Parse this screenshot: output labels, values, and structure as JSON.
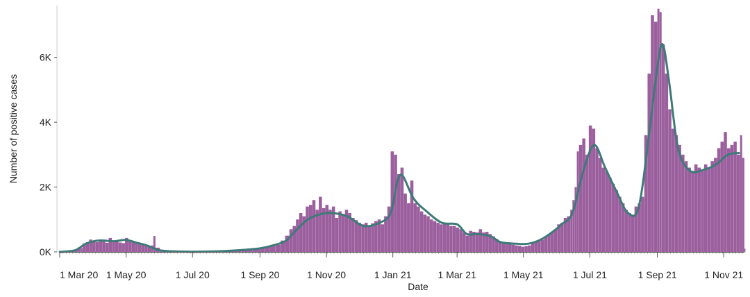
{
  "chart_data": {
    "type": "bar",
    "title": "",
    "xlabel": "Date",
    "ylabel": "Number of positive cases",
    "x_ticks": [
      {
        "date": "2020-03-01",
        "label": "1 Mar 20"
      },
      {
        "date": "2020-05-01",
        "label": "1 May 20"
      },
      {
        "date": "2020-07-01",
        "label": "1 Jul 20"
      },
      {
        "date": "2020-09-01",
        "label": "1 Sep 20"
      },
      {
        "date": "2020-11-01",
        "label": "1 Nov 20"
      },
      {
        "date": "2021-01-01",
        "label": "1 Jan 21"
      },
      {
        "date": "2021-03-01",
        "label": "1 Mar 21"
      },
      {
        "date": "2021-05-01",
        "label": "1 May 21"
      },
      {
        "date": "2021-07-01",
        "label": "1 Jul 21"
      },
      {
        "date": "2021-09-01",
        "label": "1 Sep 21"
      },
      {
        "date": "2021-11-01",
        "label": "1 Nov 21"
      }
    ],
    "y_ticks": [
      {
        "value": 0,
        "label": "0K"
      },
      {
        "value": 2000,
        "label": "2K"
      },
      {
        "value": 4000,
        "label": "4K"
      },
      {
        "value": 6000,
        "label": "6K"
      }
    ],
    "xlim": [
      "2020-03-01",
      "2021-11-20"
    ],
    "ylim": [
      0,
      7600
    ],
    "grid": false,
    "colors": {
      "bars": "#9b5f9e",
      "trend": "#3d7a78"
    },
    "series": [
      {
        "type": "bar",
        "values": [
          [
            "2020-03-01",
            5
          ],
          [
            "2020-03-05",
            12
          ],
          [
            "2020-03-10",
            30
          ],
          [
            "2020-03-15",
            60
          ],
          [
            "2020-03-18",
            150
          ],
          [
            "2020-03-20",
            120
          ],
          [
            "2020-03-22",
            260
          ],
          [
            "2020-03-25",
            300
          ],
          [
            "2020-03-28",
            380
          ],
          [
            "2020-03-31",
            330
          ],
          [
            "2020-04-03",
            300
          ],
          [
            "2020-04-06",
            380
          ],
          [
            "2020-04-09",
            330
          ],
          [
            "2020-04-12",
            280
          ],
          [
            "2020-04-15",
            430
          ],
          [
            "2020-04-18",
            300
          ],
          [
            "2020-04-21",
            350
          ],
          [
            "2020-04-24",
            290
          ],
          [
            "2020-04-27",
            270
          ],
          [
            "2020-04-30",
            430
          ],
          [
            "2020-05-03",
            330
          ],
          [
            "2020-05-06",
            300
          ],
          [
            "2020-05-09",
            290
          ],
          [
            "2020-05-12",
            250
          ],
          [
            "2020-05-15",
            220
          ],
          [
            "2020-05-18",
            190
          ],
          [
            "2020-05-21",
            170
          ],
          [
            "2020-05-24",
            200
          ],
          [
            "2020-05-26",
            490
          ],
          [
            "2020-05-28",
            130
          ],
          [
            "2020-06-01",
            40
          ],
          [
            "2020-06-10",
            20
          ],
          [
            "2020-06-20",
            20
          ],
          [
            "2020-07-01",
            20
          ],
          [
            "2020-07-15",
            25
          ],
          [
            "2020-08-01",
            40
          ],
          [
            "2020-08-15",
            60
          ],
          [
            "2020-08-25",
            80
          ],
          [
            "2020-09-01",
            110
          ],
          [
            "2020-09-05",
            150
          ],
          [
            "2020-09-10",
            180
          ],
          [
            "2020-09-15",
            220
          ],
          [
            "2020-09-20",
            350
          ],
          [
            "2020-09-24",
            500
          ],
          [
            "2020-09-28",
            700
          ],
          [
            "2020-10-01",
            800
          ],
          [
            "2020-10-04",
            1000
          ],
          [
            "2020-10-07",
            1200
          ],
          [
            "2020-10-10",
            1100
          ],
          [
            "2020-10-13",
            1400
          ],
          [
            "2020-10-16",
            1450
          ],
          [
            "2020-10-19",
            1600
          ],
          [
            "2020-10-22",
            1300
          ],
          [
            "2020-10-25",
            1700
          ],
          [
            "2020-10-28",
            1350
          ],
          [
            "2020-10-31",
            1450
          ],
          [
            "2020-11-03",
            1300
          ],
          [
            "2020-11-06",
            1400
          ],
          [
            "2020-11-09",
            1050
          ],
          [
            "2020-11-12",
            1250
          ],
          [
            "2020-11-15",
            1150
          ],
          [
            "2020-11-18",
            1300
          ],
          [
            "2020-11-21",
            1200
          ],
          [
            "2020-11-24",
            1050
          ],
          [
            "2020-11-27",
            980
          ],
          [
            "2020-11-30",
            900
          ],
          [
            "2020-12-03",
            850
          ],
          [
            "2020-12-06",
            900
          ],
          [
            "2020-12-09",
            780
          ],
          [
            "2020-12-12",
            880
          ],
          [
            "2020-12-15",
            950
          ],
          [
            "2020-12-18",
            1000
          ],
          [
            "2020-12-21",
            850
          ],
          [
            "2020-12-24",
            1100
          ],
          [
            "2020-12-27",
            1400
          ],
          [
            "2020-12-30",
            3100
          ],
          [
            "2021-01-02",
            3000
          ],
          [
            "2021-01-05",
            2400
          ],
          [
            "2021-01-08",
            2600
          ],
          [
            "2021-01-11",
            1800
          ],
          [
            "2021-01-14",
            1500
          ],
          [
            "2021-01-17",
            2200
          ],
          [
            "2021-01-20",
            1500
          ],
          [
            "2021-01-23",
            1400
          ],
          [
            "2021-01-26",
            1250
          ],
          [
            "2021-01-29",
            1150
          ],
          [
            "2021-02-01",
            1100
          ],
          [
            "2021-02-04",
            1000
          ],
          [
            "2021-02-07",
            950
          ],
          [
            "2021-02-10",
            900
          ],
          [
            "2021-02-13",
            850
          ],
          [
            "2021-02-16",
            900
          ],
          [
            "2021-02-19",
            850
          ],
          [
            "2021-02-22",
            800
          ],
          [
            "2021-02-25",
            800
          ],
          [
            "2021-02-28",
            750
          ],
          [
            "2021-03-03",
            700
          ],
          [
            "2021-03-06",
            600
          ],
          [
            "2021-03-09",
            500
          ],
          [
            "2021-03-12",
            650
          ],
          [
            "2021-03-15",
            620
          ],
          [
            "2021-03-18",
            600
          ],
          [
            "2021-03-21",
            700
          ],
          [
            "2021-03-24",
            600
          ],
          [
            "2021-03-27",
            620
          ],
          [
            "2021-03-30",
            550
          ],
          [
            "2021-04-02",
            480
          ],
          [
            "2021-04-05",
            400
          ],
          [
            "2021-04-08",
            330
          ],
          [
            "2021-04-11",
            300
          ],
          [
            "2021-04-14",
            260
          ],
          [
            "2021-04-17",
            240
          ],
          [
            "2021-04-20",
            220
          ],
          [
            "2021-04-23",
            200
          ],
          [
            "2021-04-26",
            190
          ],
          [
            "2021-04-29",
            160
          ],
          [
            "2021-05-02",
            180
          ],
          [
            "2021-05-05",
            200
          ],
          [
            "2021-05-08",
            260
          ],
          [
            "2021-05-11",
            300
          ],
          [
            "2021-05-14",
            340
          ],
          [
            "2021-05-17",
            380
          ],
          [
            "2021-05-20",
            450
          ],
          [
            "2021-05-23",
            550
          ],
          [
            "2021-05-26",
            620
          ],
          [
            "2021-05-29",
            700
          ],
          [
            "2021-06-01",
            850
          ],
          [
            "2021-06-04",
            900
          ],
          [
            "2021-06-07",
            1050
          ],
          [
            "2021-06-10",
            1100
          ],
          [
            "2021-06-13",
            1300
          ],
          [
            "2021-06-15",
            1600
          ],
          [
            "2021-06-17",
            2000
          ],
          [
            "2021-06-19",
            3100
          ],
          [
            "2021-06-21",
            3300
          ],
          [
            "2021-06-24",
            3500
          ],
          [
            "2021-06-27",
            3000
          ],
          [
            "2021-06-30",
            3900
          ],
          [
            "2021-07-03",
            3800
          ],
          [
            "2021-07-06",
            3200
          ],
          [
            "2021-07-09",
            2900
          ],
          [
            "2021-07-12",
            2600
          ],
          [
            "2021-07-15",
            2500
          ],
          [
            "2021-07-18",
            2300
          ],
          [
            "2021-07-21",
            2100
          ],
          [
            "2021-07-24",
            1900
          ],
          [
            "2021-07-27",
            1700
          ],
          [
            "2021-07-30",
            1500
          ],
          [
            "2021-08-02",
            1300
          ],
          [
            "2021-08-05",
            1200
          ],
          [
            "2021-08-08",
            1150
          ],
          [
            "2021-08-11",
            1400
          ],
          [
            "2021-08-14",
            1500
          ],
          [
            "2021-08-17",
            1700
          ],
          [
            "2021-08-20",
            3600
          ],
          [
            "2021-08-23",
            5500
          ],
          [
            "2021-08-26",
            7300
          ],
          [
            "2021-08-29",
            7100
          ],
          [
            "2021-09-01",
            7500
          ],
          [
            "2021-09-03",
            7400
          ],
          [
            "2021-09-05",
            6400
          ],
          [
            "2021-09-08",
            5500
          ],
          [
            "2021-09-11",
            4400
          ],
          [
            "2021-09-14",
            3800
          ],
          [
            "2021-09-17",
            3600
          ],
          [
            "2021-09-20",
            3300
          ],
          [
            "2021-09-23",
            3000
          ],
          [
            "2021-09-26",
            2800
          ],
          [
            "2021-09-29",
            2600
          ],
          [
            "2021-10-02",
            2500
          ],
          [
            "2021-10-05",
            2700
          ],
          [
            "2021-10-08",
            2600
          ],
          [
            "2021-10-11",
            2500
          ],
          [
            "2021-10-14",
            2700
          ],
          [
            "2021-10-17",
            2600
          ],
          [
            "2021-10-20",
            2800
          ],
          [
            "2021-10-23",
            2900
          ],
          [
            "2021-10-26",
            3200
          ],
          [
            "2021-10-29",
            3400
          ],
          [
            "2021-11-01",
            3700
          ],
          [
            "2021-11-04",
            3200
          ],
          [
            "2021-11-07",
            3300
          ],
          [
            "2021-11-10",
            3400
          ],
          [
            "2021-11-13",
            3000
          ],
          [
            "2021-11-16",
            3600
          ],
          [
            "2021-11-18",
            2900
          ],
          [
            "2021-11-20",
            100
          ]
        ]
      },
      {
        "type": "line",
        "values": [
          [
            "2020-03-01",
            0
          ],
          [
            "2020-03-15",
            50
          ],
          [
            "2020-03-25",
            250
          ],
          [
            "2020-04-05",
            350
          ],
          [
            "2020-04-20",
            330
          ],
          [
            "2020-05-01",
            370
          ],
          [
            "2020-05-10",
            290
          ],
          [
            "2020-05-20",
            200
          ],
          [
            "2020-06-01",
            50
          ],
          [
            "2020-06-20",
            10
          ],
          [
            "2020-07-15",
            10
          ],
          [
            "2020-08-01",
            30
          ],
          [
            "2020-08-20",
            70
          ],
          [
            "2020-09-01",
            110
          ],
          [
            "2020-09-15",
            220
          ],
          [
            "2020-09-25",
            350
          ],
          [
            "2020-10-05",
            700
          ],
          [
            "2020-10-15",
            1000
          ],
          [
            "2020-10-25",
            1150
          ],
          [
            "2020-11-05",
            1200
          ],
          [
            "2020-11-20",
            1100
          ],
          [
            "2020-12-05",
            800
          ],
          [
            "2020-12-20",
            900
          ],
          [
            "2020-12-30",
            1200
          ],
          [
            "2021-01-05",
            2150
          ],
          [
            "2021-01-10",
            2350
          ],
          [
            "2021-01-20",
            1650
          ],
          [
            "2021-02-01",
            1250
          ],
          [
            "2021-02-15",
            900
          ],
          [
            "2021-03-01",
            850
          ],
          [
            "2021-03-10",
            550
          ],
          [
            "2021-03-20",
            550
          ],
          [
            "2021-04-01",
            480
          ],
          [
            "2021-04-10",
            300
          ],
          [
            "2021-04-25",
            250
          ],
          [
            "2021-05-05",
            250
          ],
          [
            "2021-05-15",
            350
          ],
          [
            "2021-05-25",
            550
          ],
          [
            "2021-06-05",
            850
          ],
          [
            "2021-06-15",
            1200
          ],
          [
            "2021-06-25",
            2500
          ],
          [
            "2021-07-05",
            3300
          ],
          [
            "2021-07-15",
            2600
          ],
          [
            "2021-07-25",
            1900
          ],
          [
            "2021-08-05",
            1200
          ],
          [
            "2021-08-15",
            1400
          ],
          [
            "2021-08-25",
            3800
          ],
          [
            "2021-09-01",
            5700
          ],
          [
            "2021-09-06",
            6400
          ],
          [
            "2021-09-12",
            5200
          ],
          [
            "2021-09-20",
            3200
          ],
          [
            "2021-10-01",
            2500
          ],
          [
            "2021-10-15",
            2550
          ],
          [
            "2021-10-25",
            2700
          ],
          [
            "2021-11-05",
            3000
          ],
          [
            "2021-11-15",
            3050
          ]
        ]
      }
    ]
  }
}
